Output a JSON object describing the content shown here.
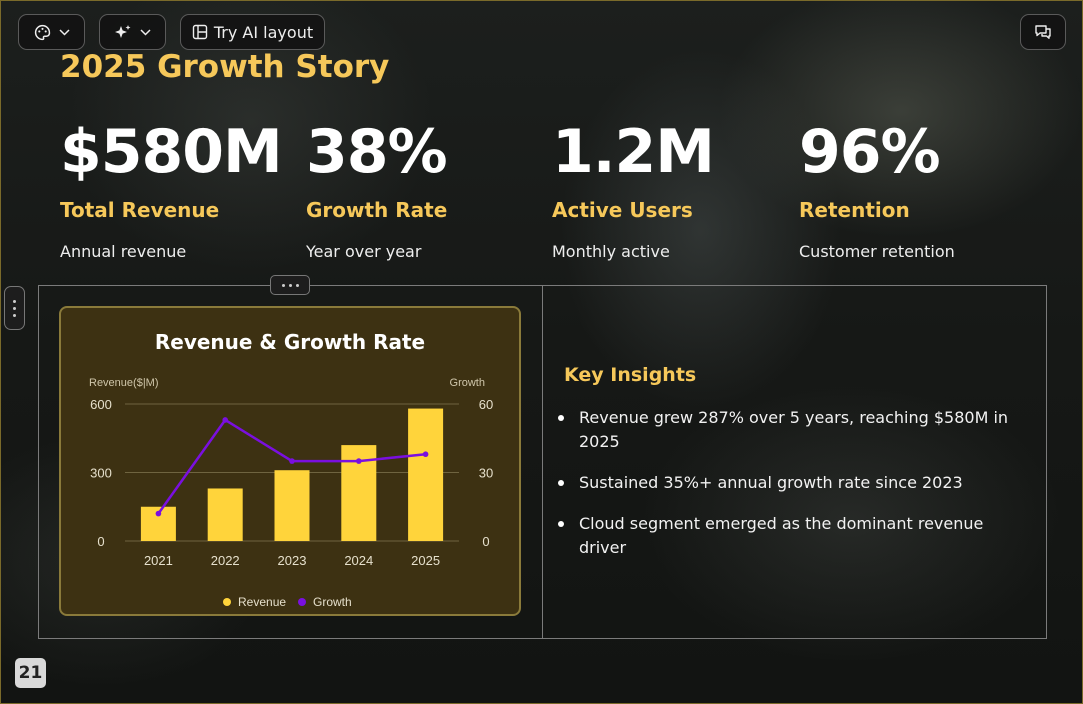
{
  "toolbar": {
    "theme_icon": "palette-icon",
    "ai_icon": "sparkle-icon",
    "ai_layout_label": "Try AI layout",
    "comments_icon": "chat-icon"
  },
  "slide": {
    "title": "2025 Growth Story",
    "page_number": "21"
  },
  "stats": [
    {
      "value": "$580M",
      "label": "Total Revenue",
      "sub": "Annual revenue"
    },
    {
      "value": "38%",
      "label": "Growth Rate",
      "sub": "Year over year"
    },
    {
      "value": "1.2M",
      "label": "Active Users",
      "sub": "Monthly active"
    },
    {
      "value": "96%",
      "label": "Retention",
      "sub": "Customer retention"
    }
  ],
  "insights": {
    "title": "Key Insights",
    "items": [
      "Revenue grew 287% over 5 years, reaching $580M in 2025",
      "Sustained 35%+ annual growth rate since 2023",
      "Cloud segment emerged as the dominant revenue driver"
    ]
  },
  "colors": {
    "accent": "#f6c85a",
    "bar": "#ffd43b",
    "line": "#7a0fe0",
    "chart_bg": "#3d3112"
  },
  "chart_data": {
    "type": "bar",
    "title": "Revenue & Growth Rate",
    "categories": [
      "2021",
      "2022",
      "2023",
      "2024",
      "2025"
    ],
    "left_axis_label": "Revenue($|M)",
    "right_axis_label": "Growth",
    "left_ylim": [
      0,
      600
    ],
    "right_ylim": [
      0,
      60
    ],
    "left_ticks": [
      "0",
      "300",
      "600"
    ],
    "right_ticks": [
      "0",
      "30",
      "60"
    ],
    "series": [
      {
        "name": "Revenue",
        "type": "bar",
        "axis": "left",
        "values": [
          150,
          230,
          310,
          420,
          580
        ]
      },
      {
        "name": "Growth",
        "type": "line",
        "axis": "right",
        "values": [
          12,
          53,
          35,
          35,
          38
        ]
      }
    ],
    "legend_position": "bottom",
    "grid": true
  }
}
